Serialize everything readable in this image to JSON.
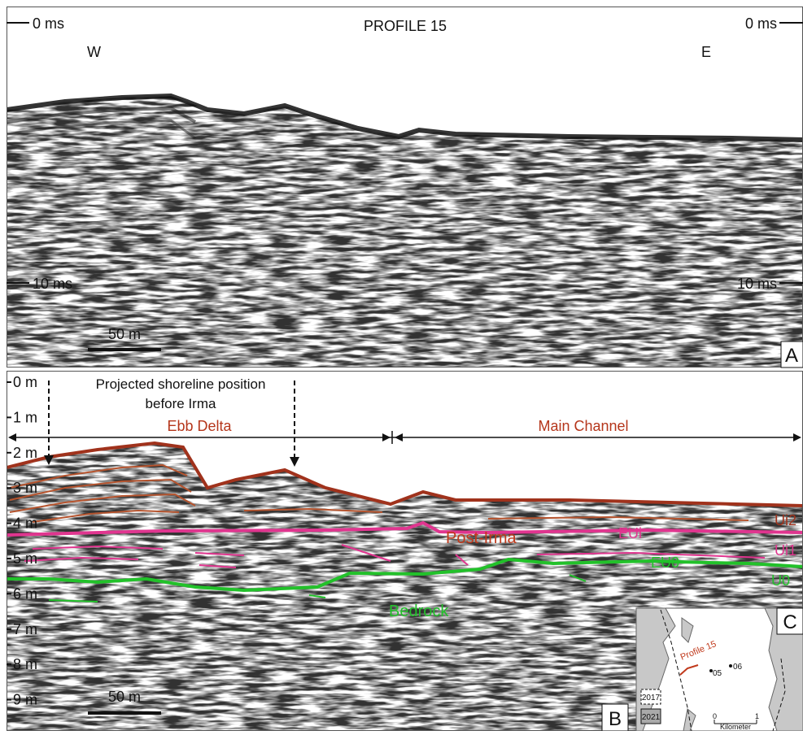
{
  "panel_a": {
    "title": "PROFILE 15",
    "time_top_left": "0 ms",
    "time_top_right": "0 ms",
    "time_bottom_left": "10 ms",
    "time_bottom_right": "10 ms",
    "west": "W",
    "east": "E",
    "scale_bar": "50 m",
    "panel_label": "A"
  },
  "panel_b": {
    "depth_labels": [
      "0 m",
      "1 m",
      "2 m",
      "3 m",
      "4 m",
      "5 m",
      "6 m",
      "7 m",
      "8 m",
      "9 m"
    ],
    "annotation": [
      "Projected shoreline position",
      "before Irma"
    ],
    "zones": [
      "Ebb Delta",
      "Main Channel"
    ],
    "units": {
      "post_irma": "Post-Irma",
      "ui2": "Ui2",
      "eui": "EUi",
      "ui1": "Ui1",
      "eu0": "EU0",
      "u0": "U0",
      "bedrock": "Bedrock"
    },
    "scale_bar": "50 m",
    "panel_label": "B"
  },
  "inset": {
    "panel_label": "C",
    "profile": "Profile 15",
    "sites": [
      "05",
      "06"
    ],
    "legend": [
      "2017",
      "2021"
    ],
    "scale": {
      "start": "0",
      "unit": "Kilometer",
      "end": "1"
    }
  }
}
